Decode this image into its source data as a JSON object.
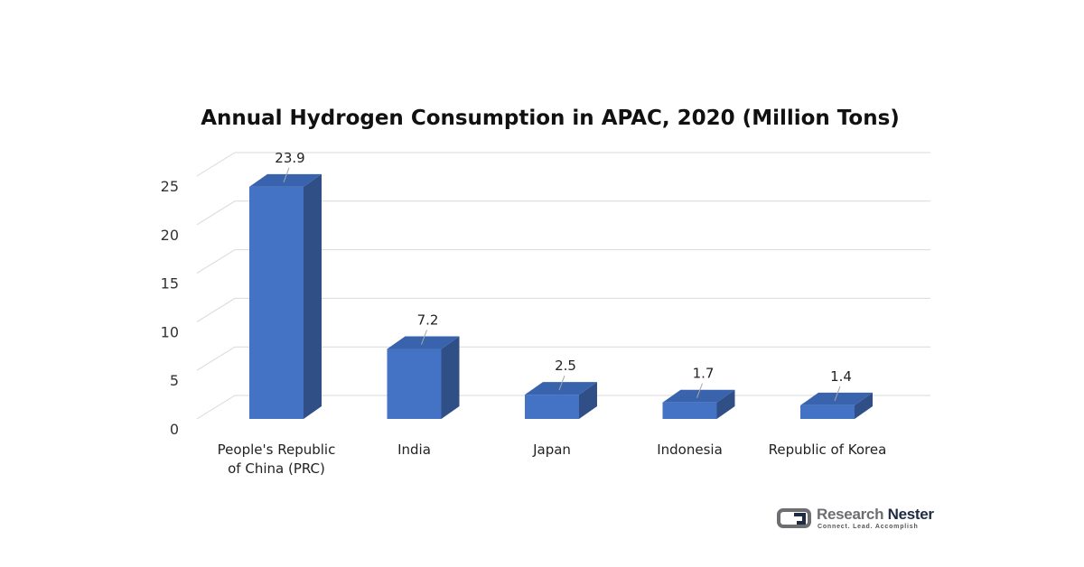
{
  "chart_data": {
    "type": "bar",
    "title": "Annual Hydrogen Consumption in APAC, 2020 (Million Tons)",
    "categories": [
      [
        "People's Republic",
        "of China (PRC)"
      ],
      [
        "India"
      ],
      [
        "Japan"
      ],
      [
        "Indonesia"
      ],
      [
        "Republic of Korea"
      ]
    ],
    "values": [
      23.9,
      7.2,
      2.5,
      1.7,
      1.4
    ],
    "value_labels": [
      "23.9",
      "7.2",
      "2.5",
      "1.7",
      "1.4"
    ],
    "ylim": [
      0,
      25
    ],
    "y_ticks": [
      0,
      5,
      10,
      15,
      20,
      25
    ],
    "xlabel": "",
    "ylabel": "",
    "grid": true,
    "bar_colors": {
      "front": "#4472c4",
      "side": "#2f4f86",
      "top": "#3a63ad"
    }
  },
  "branding": {
    "name_part1": "Research",
    "name_part2": "Nester",
    "tagline": "Connect. Lead. Accomplish"
  }
}
